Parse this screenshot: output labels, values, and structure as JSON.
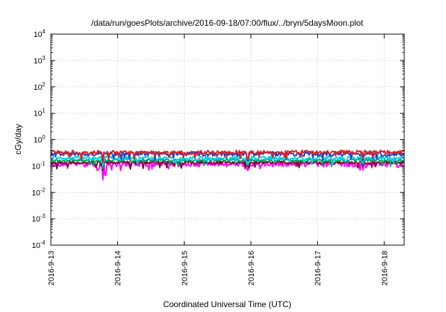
{
  "chart_data": {
    "type": "line",
    "title": "/data/run/goesPlots/archive/2016-09-18/07:00/flux/../bryn/5daysMoon.plot",
    "xlabel": "Coordinated Universal Time (UTC)",
    "ylabel": "cGy/day",
    "y_scale": "log",
    "ylim": [
      0.0001,
      10000
    ],
    "xlim": [
      0,
      5.3
    ],
    "grid": true,
    "x_tick_labels": [
      "2016-9-13",
      "2016-9-14",
      "2016-9-15",
      "2016-9-16",
      "2016-9-17",
      "2016-9-18"
    ],
    "x_tick_values": [
      0,
      1,
      2,
      3,
      4,
      5
    ],
    "y_ticks": [
      {
        "value": 0.0001,
        "base": "10",
        "exp": "-4"
      },
      {
        "value": 0.001,
        "base": "10",
        "exp": "-3"
      },
      {
        "value": 0.01,
        "base": "10",
        "exp": "-2"
      },
      {
        "value": 0.1,
        "base": "10",
        "exp": "-1"
      },
      {
        "value": 1,
        "base": "10",
        "exp": "0"
      },
      {
        "value": 10,
        "base": "10",
        "exp": "1"
      },
      {
        "value": 100,
        "base": "10",
        "exp": "2"
      },
      {
        "value": 1000,
        "base": "10",
        "exp": "3"
      },
      {
        "value": 10000,
        "base": "10",
        "exp": "4"
      }
    ],
    "series": [
      {
        "color": "#ff00ff",
        "level": 0.12,
        "noise": 0.22,
        "dips": [
          [
            0.78,
            0.03
          ],
          [
            0.82,
            0.045
          ],
          [
            0.7,
            0.07
          ],
          [
            2.95,
            0.07
          ],
          [
            4.68,
            0.07
          ],
          [
            5.2,
            0.09
          ]
        ]
      },
      {
        "color": "#7b0f2e",
        "level": 0.135,
        "noise": 0.12,
        "dips": [
          [
            0.78,
            0.07
          ],
          [
            2.95,
            0.1
          ],
          [
            4.68,
            0.1
          ]
        ]
      },
      {
        "color": "#00a060",
        "level": 0.165,
        "noise": 0.12,
        "dips": [
          [
            0.78,
            0.08
          ],
          [
            2.95,
            0.11
          ],
          [
            4.68,
            0.11
          ]
        ]
      },
      {
        "color": "#00cfe0",
        "level": 0.2,
        "noise": 0.14,
        "dips": [
          [
            0.78,
            0.1
          ],
          [
            2.95,
            0.13
          ],
          [
            4.68,
            0.13
          ]
        ]
      },
      {
        "color": "#1a3fd0",
        "level": 0.29,
        "noise": 0.18,
        "dips": [
          [
            0.78,
            0.14
          ],
          [
            2.95,
            0.16
          ],
          [
            4.68,
            0.16
          ]
        ]
      },
      {
        "color": "#e02020",
        "level": 0.33,
        "noise": 0.16,
        "dips": [
          [
            0.78,
            0.16
          ],
          [
            2.95,
            0.18
          ],
          [
            4.68,
            0.18
          ]
        ]
      }
    ]
  }
}
